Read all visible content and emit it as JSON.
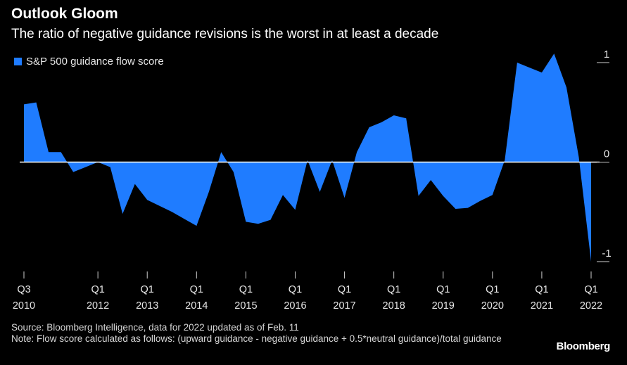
{
  "title": "Outlook Gloom",
  "subtitle": "The ratio of negative guidance revisions is the worst in at least a decade",
  "footer": {
    "source": "Source: Bloomberg Intelligence, data for 2022 updated as of Feb. 11",
    "note": "Note: Flow score calculated as follows: (upward guidance - negative guidance + 0.5*neutral guidance)/total guidance"
  },
  "brand": "Bloomberg",
  "chart_data": {
    "type": "area",
    "series": [
      {
        "name": "S&P 500 guidance flow score",
        "color": "#1f7cff",
        "x": [
          2010.5,
          2010.75,
          2011.0,
          2011.25,
          2011.5,
          2011.75,
          2012.0,
          2012.25,
          2012.5,
          2012.75,
          2013.0,
          2013.25,
          2013.5,
          2013.75,
          2014.0,
          2014.25,
          2014.5,
          2014.75,
          2015.0,
          2015.25,
          2015.5,
          2015.75,
          2016.0,
          2016.25,
          2016.5,
          2016.75,
          2017.0,
          2017.25,
          2017.5,
          2017.75,
          2018.0,
          2018.25,
          2018.5,
          2018.75,
          2019.0,
          2019.25,
          2019.5,
          2019.75,
          2020.0,
          2020.25,
          2020.5,
          2020.75,
          2021.0,
          2021.25,
          2021.5,
          2021.75,
          2022.0
        ],
        "values": [
          0.58,
          0.6,
          0.1,
          0.1,
          -0.1,
          -0.05,
          0.0,
          -0.05,
          -0.52,
          -0.22,
          -0.38,
          -0.44,
          -0.5,
          -0.57,
          -0.64,
          -0.3,
          0.1,
          -0.1,
          -0.6,
          -0.62,
          -0.58,
          -0.33,
          -0.48,
          0.02,
          -0.3,
          0.02,
          -0.36,
          0.1,
          0.35,
          0.4,
          0.47,
          0.44,
          -0.34,
          -0.18,
          -0.34,
          -0.47,
          -0.46,
          -0.39,
          -0.33,
          0.02,
          1.0,
          0.95,
          0.9,
          1.09,
          0.75,
          0.05,
          -1.0
        ]
      }
    ],
    "x_ticks": [
      {
        "value": 2010.5,
        "top": "Q3",
        "bottom": "2010"
      },
      {
        "value": 2012.0,
        "top": "Q1",
        "bottom": "2012"
      },
      {
        "value": 2013.0,
        "top": "Q1",
        "bottom": "2013"
      },
      {
        "value": 2014.0,
        "top": "Q1",
        "bottom": "2014"
      },
      {
        "value": 2015.0,
        "top": "Q1",
        "bottom": "2015"
      },
      {
        "value": 2016.0,
        "top": "Q1",
        "bottom": "2016"
      },
      {
        "value": 2017.0,
        "top": "Q1",
        "bottom": "2017"
      },
      {
        "value": 2018.0,
        "top": "Q1",
        "bottom": "2018"
      },
      {
        "value": 2019.0,
        "top": "Q1",
        "bottom": "2019"
      },
      {
        "value": 2020.0,
        "top": "Q1",
        "bottom": "2020"
      },
      {
        "value": 2021.0,
        "top": "Q1",
        "bottom": "2021"
      },
      {
        "value": 2022.0,
        "top": "Q1",
        "bottom": "2022"
      }
    ],
    "y_ticks": [
      {
        "value": 1,
        "label": "1"
      },
      {
        "value": 0,
        "label": "0"
      },
      {
        "value": -1,
        "label": "-1"
      }
    ],
    "xlim": [
      2010.5,
      2022.0
    ],
    "ylim": [
      -1.0,
      1.12
    ],
    "y_axis_side": "right",
    "grid": false,
    "legend_position": "top-left"
  }
}
